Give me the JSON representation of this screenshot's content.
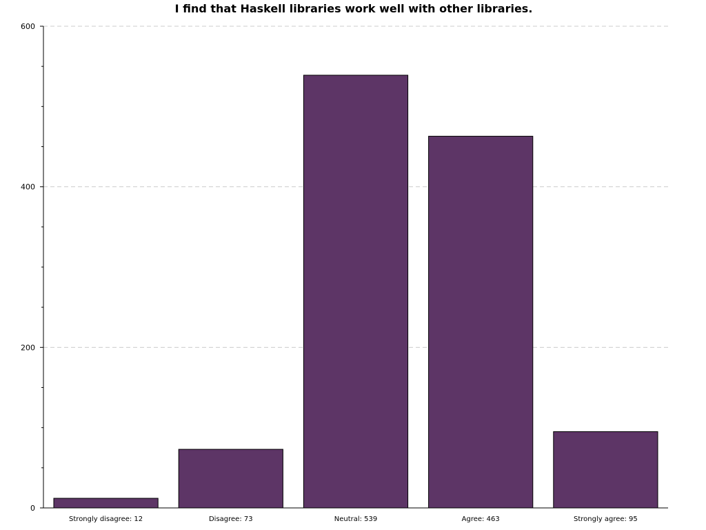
{
  "chart_data": {
    "type": "bar",
    "title": "I find that Haskell libraries work well with other libraries.",
    "xlabel": "",
    "ylabel": "",
    "categories": [
      "Strongly disagree: 12",
      "Disagree: 73",
      "Neutral: 539",
      "Agree: 463",
      "Strongly agree: 95"
    ],
    "values": [
      12,
      73,
      539,
      463,
      95
    ],
    "ylim": [
      0,
      600
    ],
    "yticks": [
      0,
      200,
      400,
      600
    ],
    "ytick_labels": [
      "0",
      "200",
      "400",
      "600"
    ],
    "y_minor_step": 50,
    "grid": "y-dashed",
    "legend": "none",
    "bar_color": "#5d3566",
    "grid_color": "#cccccc"
  }
}
